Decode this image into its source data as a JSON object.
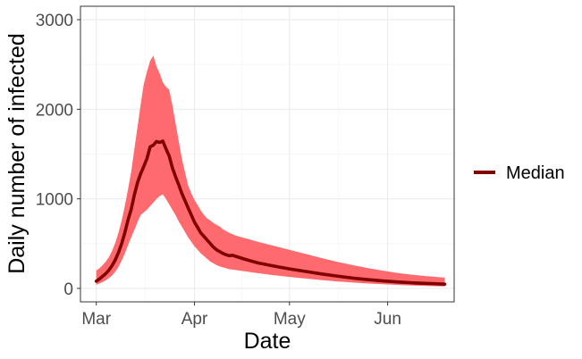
{
  "chart_data": {
    "type": "line",
    "title": "",
    "xlabel": "Date",
    "ylabel": "Daily number of infected",
    "x_ticks": [
      {
        "date": "2020-03-01",
        "label": "Mar"
      },
      {
        "date": "2020-04-01",
        "label": "Apr"
      },
      {
        "date": "2020-05-01",
        "label": "May"
      },
      {
        "date": "2020-06-01",
        "label": "Jun"
      }
    ],
    "y_ticks": [
      0,
      1000,
      2000,
      3000
    ],
    "xlim": [
      "2020-02-25",
      "2020-06-22"
    ],
    "ylim": [
      -150,
      3150
    ],
    "grid": true,
    "legend_position": "right",
    "colors": {
      "median_line": "#800000",
      "band_fill": "#ff6a6f",
      "grid_major": "#ebebeb",
      "grid_minor": "#f5f5f5",
      "panel_border": "#333333"
    },
    "series": [
      {
        "name": "Median",
        "kind": "line",
        "points": [
          [
            "2020-03-01",
            80
          ],
          [
            "2020-03-02",
            105
          ],
          [
            "2020-03-03",
            135
          ],
          [
            "2020-03-04",
            165
          ],
          [
            "2020-03-05",
            205
          ],
          [
            "2020-03-06",
            255
          ],
          [
            "2020-03-07",
            320
          ],
          [
            "2020-03-08",
            400
          ],
          [
            "2020-03-09",
            500
          ],
          [
            "2020-03-10",
            620
          ],
          [
            "2020-03-11",
            760
          ],
          [
            "2020-03-12",
            880
          ],
          [
            "2020-03-13",
            1040
          ],
          [
            "2020-03-14",
            1180
          ],
          [
            "2020-03-15",
            1280
          ],
          [
            "2020-03-16",
            1360
          ],
          [
            "2020-03-17",
            1450
          ],
          [
            "2020-03-18",
            1580
          ],
          [
            "2020-03-19",
            1600
          ],
          [
            "2020-03-20",
            1640
          ],
          [
            "2020-03-21",
            1630
          ],
          [
            "2020-03-22",
            1645
          ],
          [
            "2020-03-23",
            1560
          ],
          [
            "2020-03-24",
            1480
          ],
          [
            "2020-03-25",
            1350
          ],
          [
            "2020-03-26",
            1250
          ],
          [
            "2020-03-27",
            1160
          ],
          [
            "2020-03-28",
            1060
          ],
          [
            "2020-03-29",
            980
          ],
          [
            "2020-03-30",
            900
          ],
          [
            "2020-03-31",
            820
          ],
          [
            "2020-04-01",
            740
          ],
          [
            "2020-04-02",
            680
          ],
          [
            "2020-04-03",
            620
          ],
          [
            "2020-04-04",
            580
          ],
          [
            "2020-04-05",
            540
          ],
          [
            "2020-04-06",
            500
          ],
          [
            "2020-04-07",
            460
          ],
          [
            "2020-04-08",
            430
          ],
          [
            "2020-04-09",
            410
          ],
          [
            "2020-04-10",
            390
          ],
          [
            "2020-04-11",
            375
          ],
          [
            "2020-04-12",
            365
          ],
          [
            "2020-04-13",
            370
          ],
          [
            "2020-04-14",
            358
          ],
          [
            "2020-04-17",
            325
          ],
          [
            "2020-04-21",
            285
          ],
          [
            "2020-04-26",
            250
          ],
          [
            "2020-05-01",
            218
          ],
          [
            "2020-05-06",
            190
          ],
          [
            "2020-05-11",
            162
          ],
          [
            "2020-05-16",
            138
          ],
          [
            "2020-05-21",
            115
          ],
          [
            "2020-05-26",
            97
          ],
          [
            "2020-05-31",
            82
          ],
          [
            "2020-06-05",
            70
          ],
          [
            "2020-06-10",
            60
          ],
          [
            "2020-06-15",
            53
          ],
          [
            "2020-06-19",
            47
          ]
        ]
      },
      {
        "name": "",
        "kind": "band",
        "points": [
          [
            "2020-03-01",
            40,
            200
          ],
          [
            "2020-03-02",
            55,
            225
          ],
          [
            "2020-03-03",
            70,
            260
          ],
          [
            "2020-03-04",
            90,
            300
          ],
          [
            "2020-03-05",
            115,
            350
          ],
          [
            "2020-03-06",
            145,
            420
          ],
          [
            "2020-03-07",
            185,
            510
          ],
          [
            "2020-03-08",
            240,
            620
          ],
          [
            "2020-03-09",
            310,
            760
          ],
          [
            "2020-03-10",
            390,
            920
          ],
          [
            "2020-03-11",
            480,
            1100
          ],
          [
            "2020-03-12",
            570,
            1300
          ],
          [
            "2020-03-13",
            650,
            1550
          ],
          [
            "2020-03-14",
            740,
            1800
          ],
          [
            "2020-03-15",
            820,
            2050
          ],
          [
            "2020-03-16",
            850,
            2280
          ],
          [
            "2020-03-17",
            880,
            2420
          ],
          [
            "2020-03-18",
            920,
            2540
          ],
          [
            "2020-03-19",
            960,
            2600
          ],
          [
            "2020-03-20",
            1000,
            2480
          ],
          [
            "2020-03-21",
            1030,
            2400
          ],
          [
            "2020-03-22",
            1050,
            2300
          ],
          [
            "2020-03-23",
            1000,
            2250
          ],
          [
            "2020-03-24",
            940,
            2220
          ],
          [
            "2020-03-25",
            880,
            2050
          ],
          [
            "2020-03-26",
            820,
            1850
          ],
          [
            "2020-03-27",
            750,
            1650
          ],
          [
            "2020-03-28",
            690,
            1450
          ],
          [
            "2020-03-29",
            630,
            1300
          ],
          [
            "2020-03-30",
            570,
            1150
          ],
          [
            "2020-03-31",
            520,
            1060
          ],
          [
            "2020-04-01",
            470,
            990
          ],
          [
            "2020-04-02",
            430,
            930
          ],
          [
            "2020-04-03",
            390,
            870
          ],
          [
            "2020-04-04",
            360,
            820
          ],
          [
            "2020-04-05",
            330,
            780
          ],
          [
            "2020-04-06",
            300,
            760
          ],
          [
            "2020-04-07",
            280,
            730
          ],
          [
            "2020-04-08",
            260,
            710
          ],
          [
            "2020-04-09",
            245,
            690
          ],
          [
            "2020-04-10",
            235,
            660
          ],
          [
            "2020-04-11",
            225,
            640
          ],
          [
            "2020-04-12",
            215,
            620
          ],
          [
            "2020-04-13",
            210,
            605
          ],
          [
            "2020-04-14",
            205,
            590
          ],
          [
            "2020-04-17",
            190,
            560
          ],
          [
            "2020-04-21",
            170,
            520
          ],
          [
            "2020-04-26",
            148,
            475
          ],
          [
            "2020-05-01",
            128,
            430
          ],
          [
            "2020-05-06",
            110,
            385
          ],
          [
            "2020-05-11",
            93,
            340
          ],
          [
            "2020-05-16",
            78,
            298
          ],
          [
            "2020-05-21",
            65,
            260
          ],
          [
            "2020-05-26",
            54,
            225
          ],
          [
            "2020-05-31",
            45,
            195
          ],
          [
            "2020-06-05",
            37,
            168
          ],
          [
            "2020-06-10",
            30,
            148
          ],
          [
            "2020-06-15",
            25,
            132
          ],
          [
            "2020-06-19",
            21,
            120
          ]
        ]
      }
    ]
  }
}
